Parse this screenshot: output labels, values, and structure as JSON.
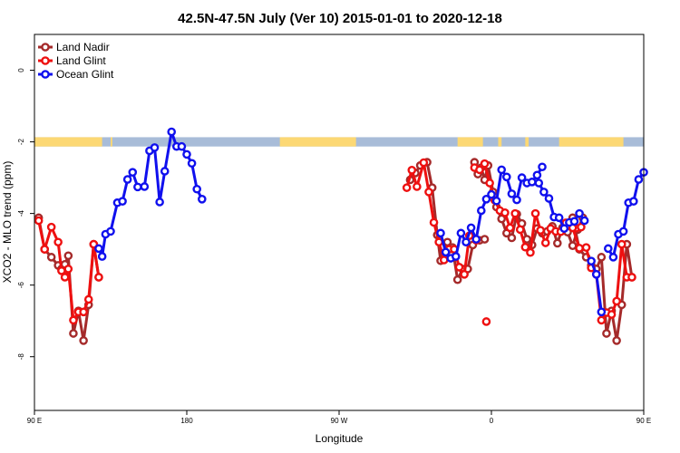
{
  "chart_data": {
    "type": "line",
    "title": "42.5N-47.5N July (Ver 10)   2015-01-01 to 2020-12-18",
    "xlabel": "Longitude",
    "ylabel": "XCO2 - MLO trend (ppm)",
    "xlim": [
      90,
      450
    ],
    "ylim": [
      -9.5,
      1.0
    ],
    "x_ticks": [
      {
        "value": 90,
        "label": "90 E"
      },
      {
        "value": 180,
        "label": "180"
      },
      {
        "value": 270,
        "label": "90 W"
      },
      {
        "value": 360,
        "label": "0"
      },
      {
        "value": 450,
        "label": "90 E"
      },
      {
        "value": 540,
        "label": "180"
      }
    ],
    "y_ticks": [
      {
        "value": 0,
        "label": "0"
      },
      {
        "value": -2,
        "label": "-2"
      },
      {
        "value": -4,
        "label": "-4"
      },
      {
        "value": -6,
        "label": "-6"
      },
      {
        "value": -8,
        "label": "-8"
      }
    ],
    "legend_position": "top-left",
    "land_ocean_band": {
      "y_range": [
        -2.13,
        -1.87
      ],
      "land_color": "#fcd874",
      "ocean_color": "#a8bcd8",
      "land_ranges": [
        [
          90,
          130
        ],
        [
          135,
          136
        ],
        [
          235,
          280
        ],
        [
          340,
          355
        ],
        [
          364,
          366
        ],
        [
          380,
          382
        ],
        [
          400,
          438
        ],
        [
          468,
          490
        ],
        [
          525,
          542
        ]
      ]
    },
    "series": [
      {
        "name": "Land Nadir",
        "color": "#a52a2a",
        "segments": [
          [
            [
              92.5,
              -4.12
            ],
            [
              96,
              -5.0
            ],
            [
              100,
              -5.22
            ],
            [
              104,
              -5.45
            ],
            [
              106,
              -5.55
            ],
            [
              108,
              -5.42
            ],
            [
              110,
              -5.18
            ],
            [
              113,
              -7.35
            ],
            [
              116,
              -6.72
            ],
            [
              119,
              -7.55
            ],
            [
              122,
              -6.55
            ],
            [
              125,
              -4.86
            ],
            [
              128,
              -5.78
            ]
          ],
          [
            [
              312,
              -3.06
            ],
            [
              315,
              -2.87
            ],
            [
              318,
              -2.66
            ],
            [
              322,
              -2.57
            ],
            [
              325,
              -3.28
            ],
            [
              328,
              -4.6
            ],
            [
              330,
              -5.32
            ],
            [
              334,
              -4.8
            ],
            [
              337,
              -4.95
            ],
            [
              340,
              -5.85
            ],
            [
              343,
              -5.55
            ],
            [
              346,
              -5.55
            ],
            [
              349,
              -4.88
            ],
            [
              353,
              -4.75
            ],
            [
              356,
              -4.72
            ]
          ],
          [
            [
              350,
              -2.57
            ],
            [
              352,
              -2.9
            ],
            [
              354,
              -2.72
            ],
            [
              356,
              -3.06
            ],
            [
              358,
              -2.66
            ],
            [
              361,
              -3.4
            ],
            [
              363,
              -3.82
            ],
            [
              366,
              -4.15
            ],
            [
              369,
              -4.55
            ],
            [
              372,
              -4.68
            ],
            [
              375,
              -4.02
            ],
            [
              378,
              -4.28
            ],
            [
              381,
              -4.72
            ],
            [
              384,
              -4.88
            ],
            [
              387,
              -4.42
            ],
            [
              390,
              -4.55
            ],
            [
              393,
              -4.5
            ],
            [
              396,
              -4.36
            ],
            [
              399,
              -4.83
            ],
            [
              402,
              -4.4
            ],
            [
              405,
              -4.52
            ],
            [
              408,
              -4.9
            ],
            [
              411,
              -4.45
            ],
            [
              414,
              -4.12
            ]
          ],
          [
            [
              408,
              -4.12
            ],
            [
              412,
              -5.0
            ],
            [
              416,
              -5.22
            ],
            [
              419,
              -5.45
            ],
            [
              422,
              -5.55
            ],
            [
              425,
              -5.22
            ],
            [
              428,
              -7.35
            ],
            [
              431,
              -6.72
            ],
            [
              434,
              -7.55
            ],
            [
              437,
              -6.55
            ],
            [
              440,
              -4.86
            ],
            [
              443,
              -5.78
            ]
          ]
        ]
      },
      {
        "name": "Land Glint",
        "color": "#ee1010",
        "segments": [
          [
            [
              92.5,
              -4.2
            ],
            [
              96,
              -5.0
            ],
            [
              100,
              -4.38
            ],
            [
              104,
              -4.8
            ],
            [
              106,
              -5.6
            ],
            [
              108,
              -5.78
            ],
            [
              110,
              -5.55
            ],
            [
              113,
              -6.98
            ],
            [
              116,
              -6.75
            ],
            [
              119,
              -6.75
            ],
            [
              122,
              -6.4
            ],
            [
              125,
              -4.86
            ],
            [
              128,
              -5.78
            ]
          ],
          [
            [
              310,
              -3.28
            ],
            [
              313,
              -2.79
            ],
            [
              316,
              -3.25
            ],
            [
              320,
              -2.58
            ],
            [
              323,
              -3.4
            ],
            [
              326,
              -4.25
            ],
            [
              329,
              -4.8
            ],
            [
              332,
              -5.3
            ],
            [
              335,
              -5.0
            ],
            [
              338,
              -5.0
            ],
            [
              341,
              -5.5
            ],
            [
              344,
              -5.7
            ],
            [
              347,
              -4.62
            ],
            [
              351,
              -4.75
            ]
          ],
          [
            [
              357,
              -7.02
            ]
          ],
          [
            [
              350,
              -2.72
            ],
            [
              353,
              -2.78
            ],
            [
              356,
              -2.61
            ],
            [
              359,
              -3.15
            ],
            [
              362,
              -3.63
            ],
            [
              365,
              -3.92
            ],
            [
              368,
              -3.98
            ],
            [
              371,
              -4.4
            ],
            [
              374,
              -4.0
            ],
            [
              377,
              -4.45
            ],
            [
              380,
              -4.94
            ],
            [
              383,
              -5.09
            ],
            [
              386,
              -4.0
            ],
            [
              389,
              -4.47
            ],
            [
              392,
              -4.82
            ],
            [
              395,
              -4.42
            ],
            [
              398,
              -4.5
            ],
            [
              401,
              -4.51
            ],
            [
              404,
              -4.26
            ],
            [
              407,
              -4.25
            ],
            [
              410,
              -4.41
            ],
            [
              413,
              -4.38
            ]
          ],
          [
            [
              408,
              -4.4
            ],
            [
              412,
              -4.97
            ],
            [
              416,
              -4.95
            ],
            [
              419,
              -5.52
            ],
            [
              422,
              -5.7
            ],
            [
              425,
              -6.98
            ],
            [
              428,
              -6.77
            ],
            [
              431,
              -6.82
            ],
            [
              434,
              -6.45
            ],
            [
              437,
              -4.86
            ],
            [
              440,
              -5.78
            ],
            [
              443,
              -5.78
            ]
          ]
        ]
      },
      {
        "name": "Ocean Glint",
        "color": "#1010ee",
        "segments": [
          [
            [
              128,
              -4.98
            ],
            [
              130,
              -5.2
            ],
            [
              132,
              -4.58
            ],
            [
              135,
              -4.5
            ],
            [
              139,
              -3.7
            ],
            [
              142,
              -3.66
            ],
            [
              145,
              -3.05
            ],
            [
              148,
              -2.85
            ],
            [
              151,
              -3.26
            ],
            [
              155,
              -3.25
            ],
            [
              158,
              -2.25
            ],
            [
              161,
              -2.16
            ],
            [
              164,
              -3.68
            ],
            [
              167,
              -2.82
            ],
            [
              171,
              -1.72
            ],
            [
              174,
              -2.13
            ],
            [
              177,
              -2.13
            ],
            [
              180,
              -2.35
            ],
            [
              183,
              -2.6
            ],
            [
              186,
              -3.32
            ],
            [
              189,
              -3.6
            ]
          ],
          [
            [
              330,
              -4.55
            ],
            [
              333,
              -5.08
            ],
            [
              336,
              -5.25
            ],
            [
              339,
              -5.2
            ],
            [
              342,
              -4.55
            ],
            [
              345,
              -4.8
            ],
            [
              348,
              -4.4
            ],
            [
              351,
              -4.72
            ],
            [
              354,
              -3.92
            ],
            [
              357,
              -3.6
            ],
            [
              360,
              -3.47
            ],
            [
              363,
              -3.65
            ],
            [
              366,
              -2.78
            ],
            [
              369,
              -2.98
            ],
            [
              372,
              -3.45
            ],
            [
              375,
              -3.62
            ],
            [
              378,
              -3.0
            ],
            [
              381,
              -3.15
            ],
            [
              384,
              -3.12
            ],
            [
              387,
              -2.93
            ],
            [
              390,
              -2.7
            ]
          ],
          [
            [
              388,
              -3.15
            ],
            [
              391,
              -3.4
            ],
            [
              394,
              -3.58
            ],
            [
              397,
              -4.1
            ],
            [
              400,
              -4.12
            ],
            [
              403,
              -4.42
            ],
            [
              406,
              -4.25
            ],
            [
              409,
              -4.22
            ],
            [
              412,
              -4.0
            ],
            [
              415,
              -4.2
            ]
          ],
          [
            [
              419,
              -5.33
            ],
            [
              422,
              -5.7
            ],
            [
              425,
              -6.75
            ]
          ],
          [
            [
              429,
              -4.98
            ],
            [
              432,
              -5.22
            ],
            [
              435,
              -4.58
            ],
            [
              438,
              -4.5
            ],
            [
              441,
              -3.7
            ],
            [
              444,
              -3.66
            ],
            [
              447,
              -3.05
            ],
            [
              450,
              -2.85
            ],
            [
              453,
              -3.26
            ]
          ]
        ]
      }
    ]
  }
}
